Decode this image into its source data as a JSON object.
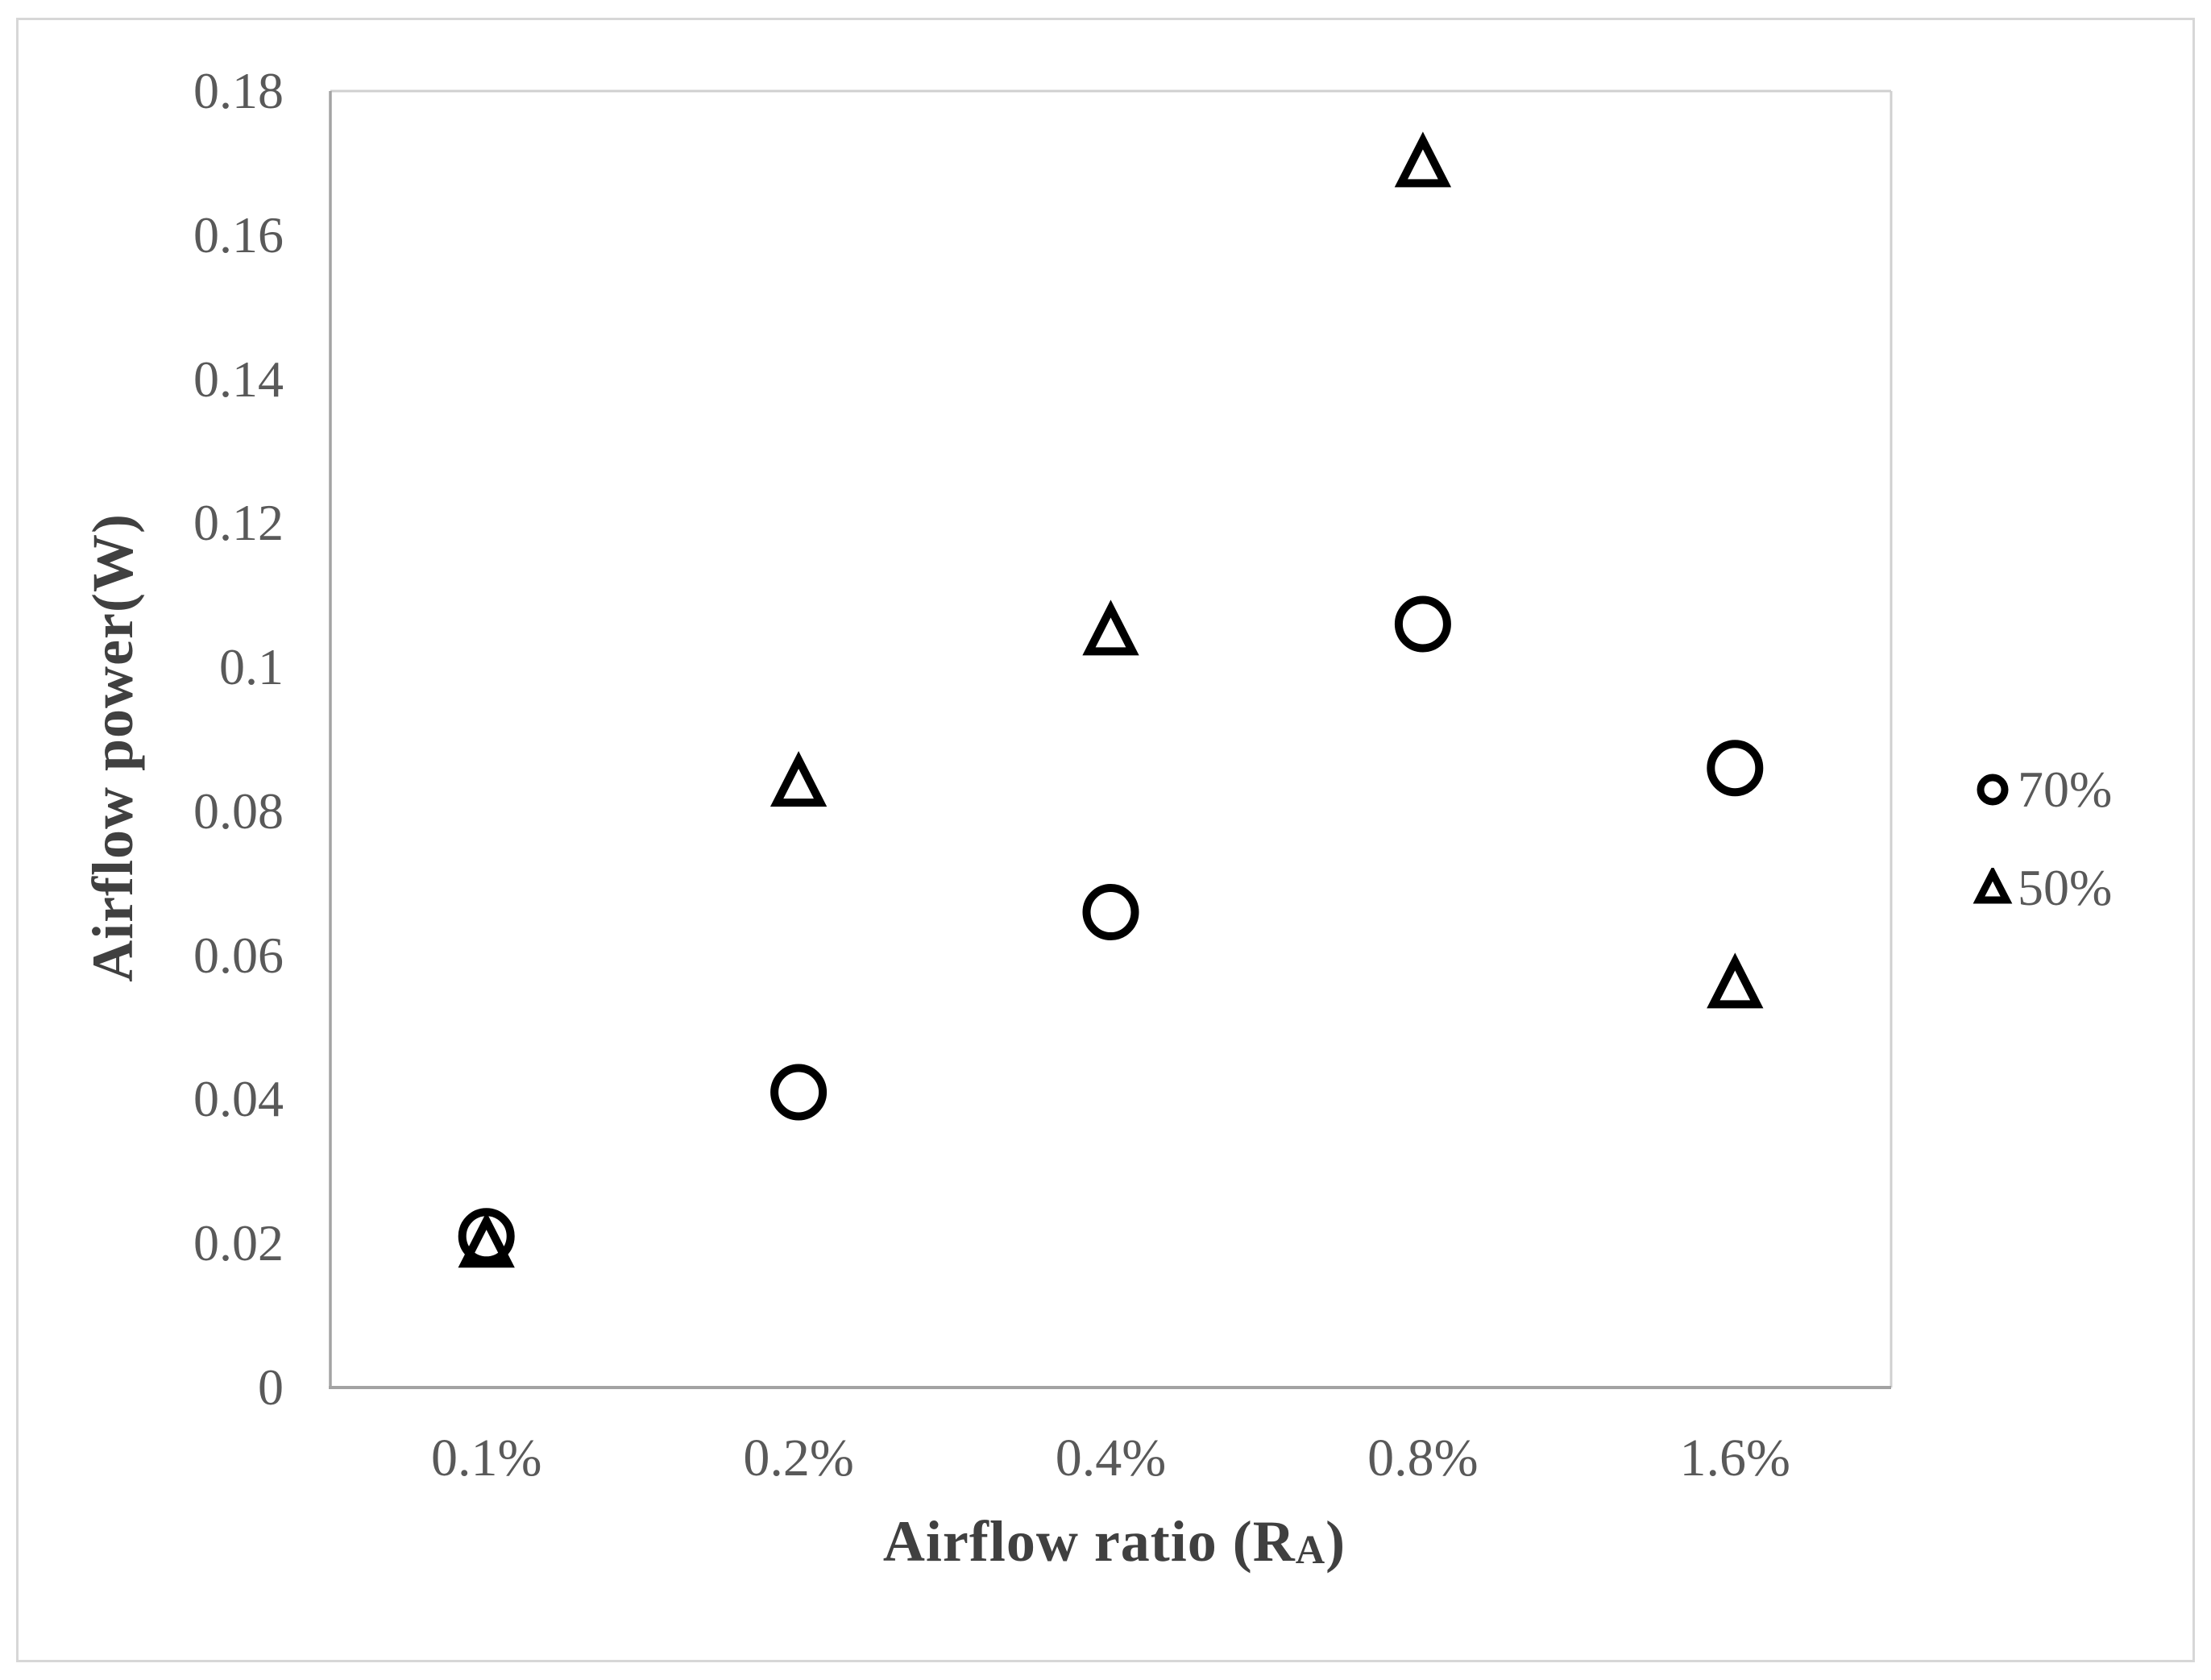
{
  "figure": {
    "background": "#ffffff",
    "frame_color": "#d7d7d7"
  },
  "chart_data": {
    "type": "scatter",
    "title": "",
    "categories": [
      "0.1%",
      "0.2%",
      "0.4%",
      "0.8%",
      "1.6%"
    ],
    "series": [
      {
        "name": "70%",
        "marker": "circle",
        "values": [
          0.021,
          0.041,
          0.066,
          0.106,
          0.086
        ]
      },
      {
        "name": "50%",
        "marker": "triangle",
        "values": [
          0.02,
          0.084,
          0.105,
          0.17,
          0.056
        ]
      }
    ],
    "xlabel": "Airflow ratio (RA)",
    "xlabel_parts": {
      "prefix": "Airflow ratio (R",
      "subscript": "A",
      "suffix": ")"
    },
    "ylabel": "Airflow power(W)",
    "ylim": [
      0,
      0.18
    ],
    "ytick_values": [
      0,
      0.02,
      0.04,
      0.06,
      0.08,
      0.1,
      0.12,
      0.14,
      0.16,
      0.18
    ],
    "ytick_labels": [
      "0",
      "0.02",
      "0.04",
      "0.06",
      "0.08",
      "0.1",
      "0.12",
      "0.14",
      "0.16",
      "0.18"
    ],
    "grid": false,
    "legend_position": "right",
    "marker_color": "#000000",
    "tick_color": "#595959",
    "axis_title_color": "#404040",
    "axis_line_color_major": "#a3a3a3",
    "axis_line_color_minor": "#d0d0d0"
  }
}
